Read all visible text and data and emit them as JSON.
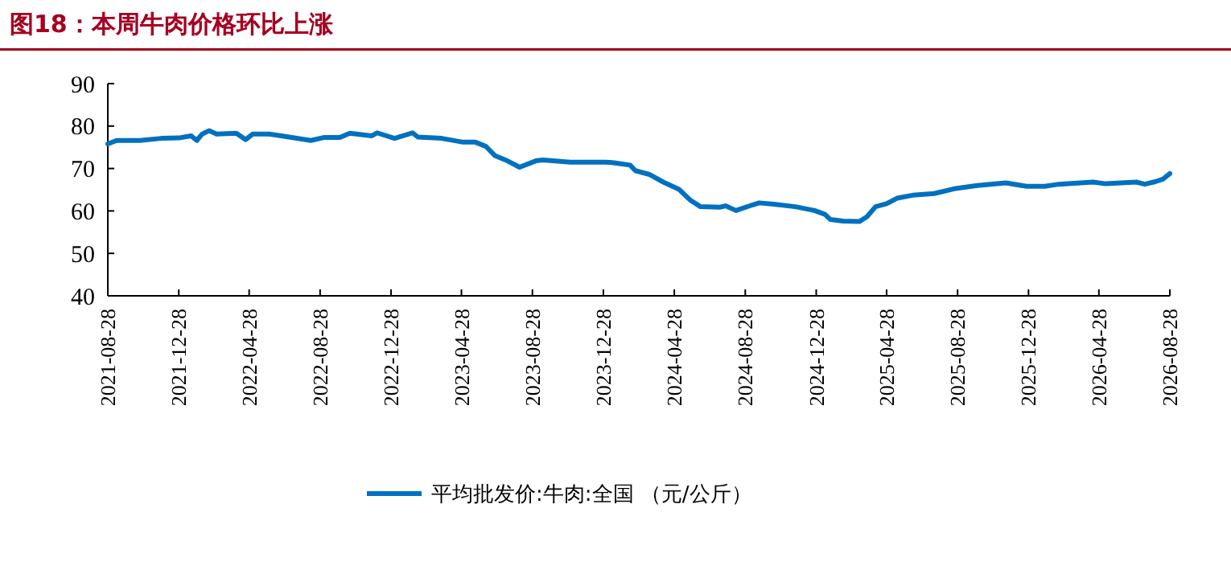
{
  "chart_data": {
    "type": "line",
    "title": "图18：本周牛肉价格环比上涨",
    "x": [
      "2021-08-28",
      "2021-09-12",
      "2021-10-22",
      "2021-11-28",
      "2021-12-28",
      "2022-01-18",
      "2022-01-28",
      "2022-02-06",
      "2022-02-18",
      "2022-03-03",
      "2022-04-06",
      "2022-04-22",
      "2022-05-04",
      "2022-06-01",
      "2022-06-18",
      "2022-08-12",
      "2022-09-03",
      "2022-10-01",
      "2022-10-18",
      "2022-11-25",
      "2022-12-04",
      "2023-01-03",
      "2023-02-03",
      "2023-02-12",
      "2023-03-25",
      "2023-05-01",
      "2023-05-22",
      "2023-06-09",
      "2023-06-25",
      "2023-07-16",
      "2023-08-06",
      "2023-09-03",
      "2023-09-15",
      "2023-11-01",
      "2024-01-01",
      "2024-01-12",
      "2024-02-12",
      "2024-02-21",
      "2024-03-16",
      "2024-04-09",
      "2024-05-06",
      "2024-05-25",
      "2024-06-12",
      "2024-07-16",
      "2024-07-25",
      "2024-08-12",
      "2024-09-09",
      "2024-09-21",
      "2024-10-16",
      "2024-11-22",
      "2024-12-25",
      "2025-01-12",
      "2025-01-21",
      "2025-02-12",
      "2025-03-12",
      "2025-03-25",
      "2025-04-09",
      "2025-04-28",
      "2025-05-16",
      "2025-06-12",
      "2025-07-19",
      "2025-08-25",
      "2025-10-01",
      "2025-11-19",
      "2025-12-25",
      "2026-01-25",
      "2026-02-18",
      "2026-04-18",
      "2026-05-10",
      "2026-07-01",
      "2026-07-16",
      "2026-08-03",
      "2026-08-16",
      "2026-08-28"
    ],
    "series": [
      {
        "name": "平均批发价:牛肉:全国 （元/公斤）",
        "color": "#0070c0",
        "values": [
          75.8,
          76.6,
          76.6,
          77.1,
          77.2,
          77.7,
          76.6,
          78.1,
          78.9,
          78.1,
          78.3,
          76.8,
          78.1,
          78.1,
          77.8,
          76.6,
          77.3,
          77.3,
          78.3,
          77.7,
          78.4,
          77.1,
          78.4,
          77.4,
          77.1,
          76.2,
          76.2,
          75.2,
          73.0,
          71.8,
          70.3,
          71.8,
          72.0,
          71.5,
          71.5,
          71.4,
          70.8,
          69.5,
          68.6,
          66.8,
          65.1,
          62.6,
          61.0,
          60.9,
          61.2,
          60.1,
          61.4,
          61.9,
          61.6,
          61.0,
          60.1,
          59.2,
          58.0,
          57.6,
          57.5,
          58.6,
          61.0,
          61.7,
          63.0,
          63.7,
          64.1,
          65.3,
          66.0,
          66.6,
          65.8,
          65.8,
          66.3,
          66.8,
          66.4,
          66.8,
          66.3,
          66.9,
          67.5,
          68.8
        ]
      }
    ],
    "xlim": [
      "2021-08-28",
      "2026-08-28"
    ],
    "xticks": [
      "2021-08-28",
      "2021-12-28",
      "2022-04-28",
      "2022-08-28",
      "2022-12-28",
      "2023-04-28",
      "2023-08-28",
      "2023-12-28",
      "2024-04-28",
      "2024-08-28",
      "2024-12-28",
      "2025-04-28",
      "2025-08-28",
      "2025-12-28",
      "2026-04-28",
      "2026-08-28"
    ],
    "ylim": [
      40,
      90
    ],
    "yticks": [
      40,
      50,
      60,
      70,
      80,
      90
    ],
    "grid": false,
    "legend": "bottom",
    "marker": "none",
    "line_style": "solid"
  }
}
